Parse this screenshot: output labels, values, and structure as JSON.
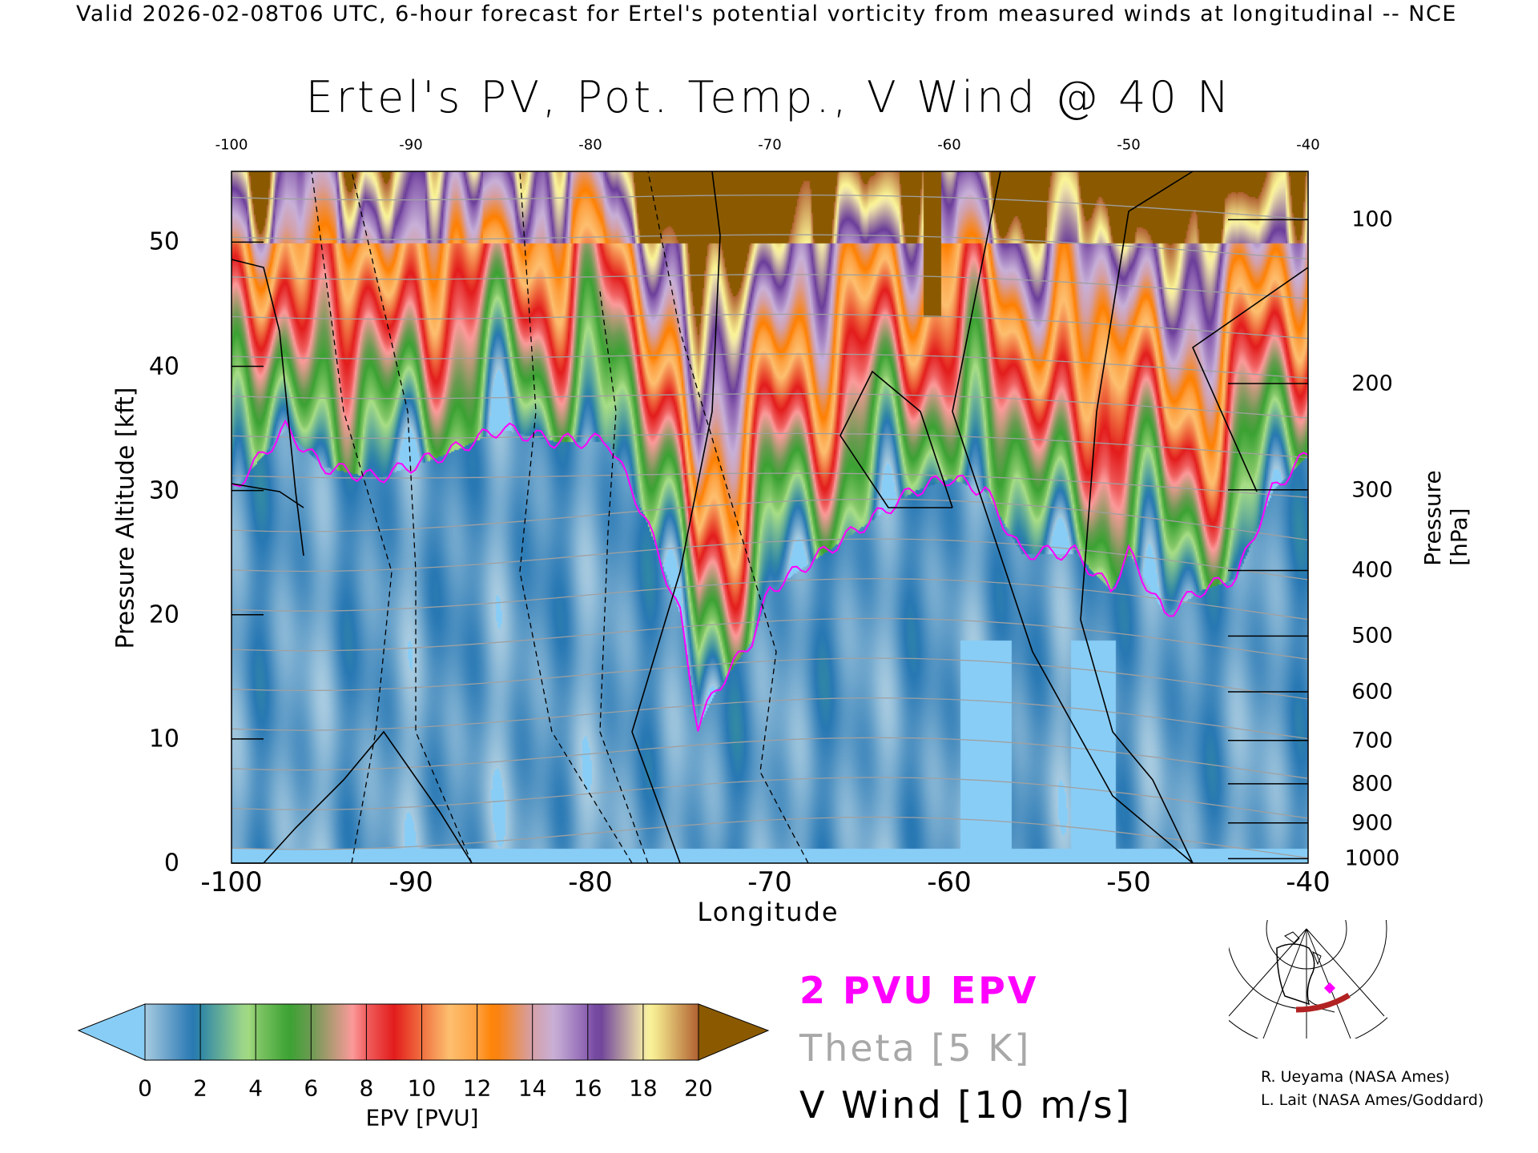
{
  "header": {
    "text": "Valid 2026-02-08T06 UTC, 6-hour forecast for Ertel's potential vorticity from measured winds at longitudinal -- NCE"
  },
  "chart_data": {
    "type": "heatmap",
    "title": "Ertel's PV, Pot. Temp., V Wind @ 40 N",
    "xlabel": "Longitude",
    "ylabel": "Pressure Altitude [kft]",
    "y2label": "Pressure [hPa]",
    "xlim": [
      -100,
      -40
    ],
    "ylim": [
      0,
      55.7
    ],
    "x_ticks": [
      "-100",
      "-90",
      "-80",
      "-70",
      "-60",
      "-50",
      "-40"
    ],
    "x_tick_values": [
      -100,
      -90,
      -80,
      -70,
      -60,
      -50,
      -40
    ],
    "top_ticks": [
      "-100",
      "-90",
      "-80",
      "-70",
      "-60",
      "-50",
      "-40"
    ],
    "y_ticks": [
      "0",
      "10",
      "20",
      "30",
      "40",
      "50"
    ],
    "y_tick_values": [
      0,
      10,
      20,
      30,
      40,
      50
    ],
    "pressure_ticks": [
      "100",
      "200",
      "300",
      "400",
      "500",
      "600",
      "700",
      "800",
      "900",
      "1000"
    ],
    "pressure_tick_values": [
      100,
      200,
      300,
      400,
      500,
      600,
      700,
      800,
      900,
      1000
    ],
    "tropopause_2pvu_kft": {
      "lon": [
        -100,
        -97,
        -95,
        -92,
        -88,
        -85,
        -82,
        -79,
        -77,
        -75,
        -74,
        -73,
        -71,
        -70,
        -68,
        -65,
        -62,
        -60,
        -58,
        -56,
        -53,
        -51,
        -50,
        -48,
        -46,
        -44,
        -42,
        -40
      ],
      "height": [
        30,
        35,
        32,
        31,
        33,
        35,
        34,
        34,
        28,
        20,
        11,
        14,
        18,
        22,
        24,
        27,
        30,
        31,
        30,
        25,
        25,
        22,
        25,
        20,
        22,
        23,
        30,
        33
      ]
    },
    "colorbar": {
      "label": "EPV [PVU]",
      "ticks": [
        "0",
        "2",
        "4",
        "6",
        "8",
        "10",
        "12",
        "14",
        "16",
        "18",
        "20"
      ],
      "range": [
        0,
        20
      ],
      "under_color": "#88cdf6",
      "over_color": "#8b5a00"
    },
    "legend": {
      "pv_contour": "2 PVU EPV",
      "theta": "Theta [5 K]",
      "vwind": "V Wind [10 m/s]"
    },
    "colors": {
      "pv_contour": "#ff00ff",
      "theta": "#a0a0a0",
      "vwind": "#000000",
      "track": "#b22222"
    }
  },
  "credits": [
    "R. Ueyama (NASA Ames)",
    "L. Lait (NASA Ames/Goddard)"
  ]
}
